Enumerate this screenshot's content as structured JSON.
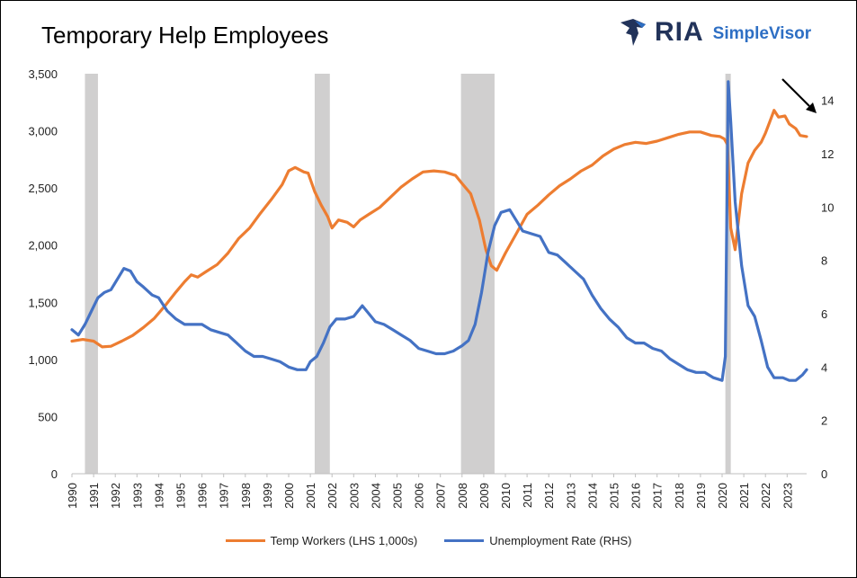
{
  "title": "Temporary Help Employees",
  "logo": {
    "brand": "RIA",
    "sub": "SimpleVisor",
    "icon": "eagle-icon"
  },
  "chart_data": {
    "type": "line",
    "x_ticks": [
      "1990",
      "1991",
      "1992",
      "1993",
      "1994",
      "1995",
      "1996",
      "1997",
      "1998",
      "1999",
      "2000",
      "2001",
      "2002",
      "2003",
      "2004",
      "2005",
      "2006",
      "2007",
      "2008",
      "2009",
      "2010",
      "2011",
      "2012",
      "2013",
      "2014",
      "2015",
      "2016",
      "2017",
      "2018",
      "2019",
      "2020",
      "2021",
      "2022",
      "2023"
    ],
    "xlim": [
      1990,
      2023.9
    ],
    "y_left": {
      "label": "",
      "ylim": [
        0,
        3500
      ],
      "ticks": [
        "0",
        "500",
        "1,000",
        "1,500",
        "2,000",
        "2,500",
        "3,000",
        "3,500"
      ],
      "tick_values": [
        0,
        500,
        1000,
        1500,
        2000,
        2500,
        3000,
        3500
      ]
    },
    "y_right": {
      "label": "",
      "ylim": [
        0,
        15
      ],
      "ticks": [
        "0",
        "2",
        "4",
        "6",
        "8",
        "10",
        "12",
        "14"
      ],
      "tick_values": [
        0,
        2,
        4,
        6,
        8,
        10,
        12,
        14
      ]
    },
    "recessions": [
      [
        1990.6,
        1991.2
      ],
      [
        2001.2,
        2001.9
      ],
      [
        2007.95,
        2009.5
      ],
      [
        2020.15,
        2020.4
      ]
    ],
    "series": [
      {
        "name": "Temp Workers (LHS 1,000s)",
        "axis": "left",
        "color": "#ED7D31",
        "x": [
          1990,
          1990.5,
          1991,
          1991.4,
          1991.8,
          1992.3,
          1992.8,
          1993.3,
          1993.8,
          1994.3,
          1994.8,
          1995.2,
          1995.5,
          1995.8,
          1996.2,
          1996.7,
          1997.2,
          1997.7,
          1998.2,
          1998.7,
          1999.2,
          1999.7,
          2000.0,
          2000.3,
          2000.7,
          2000.9,
          2001.2,
          2001.5,
          2001.8,
          2002.0,
          2002.3,
          2002.7,
          2003.0,
          2003.3,
          2003.7,
          2004.2,
          2004.7,
          2005.2,
          2005.7,
          2006.2,
          2006.7,
          2007.2,
          2007.7,
          2008.0,
          2008.4,
          2008.8,
          2009.1,
          2009.35,
          2009.6,
          2010.0,
          2010.5,
          2011.0,
          2011.5,
          2012.0,
          2012.5,
          2013.0,
          2013.5,
          2014.0,
          2014.5,
          2015.0,
          2015.5,
          2016.0,
          2016.5,
          2017.0,
          2017.5,
          2018.0,
          2018.5,
          2019.0,
          2019.5,
          2019.9,
          2020.1,
          2020.25,
          2020.4,
          2020.6,
          2020.9,
          2021.2,
          2021.5,
          2021.8,
          2022.0,
          2022.2,
          2022.4,
          2022.6,
          2022.9,
          2023.1,
          2023.4,
          2023.6,
          2023.9
        ],
        "values": [
          1160,
          1175,
          1160,
          1110,
          1115,
          1160,
          1210,
          1280,
          1360,
          1470,
          1590,
          1680,
          1740,
          1720,
          1770,
          1830,
          1930,
          2060,
          2150,
          2280,
          2400,
          2530,
          2650,
          2680,
          2640,
          2630,
          2470,
          2350,
          2250,
          2150,
          2220,
          2200,
          2160,
          2220,
          2270,
          2330,
          2420,
          2510,
          2580,
          2640,
          2650,
          2640,
          2610,
          2540,
          2450,
          2220,
          1960,
          1820,
          1780,
          1930,
          2100,
          2270,
          2350,
          2440,
          2520,
          2580,
          2650,
          2700,
          2780,
          2840,
          2880,
          2900,
          2890,
          2910,
          2940,
          2970,
          2990,
          2990,
          2960,
          2950,
          2930,
          2880,
          2150,
          1960,
          2450,
          2720,
          2830,
          2900,
          2980,
          3080,
          3180,
          3120,
          3130,
          3060,
          3020,
          2960,
          2950
        ]
      },
      {
        "name": "Unemployment Rate (RHS)",
        "axis": "right",
        "color": "#4472C4",
        "x": [
          1990,
          1990.3,
          1990.6,
          1990.9,
          1991.2,
          1991.5,
          1991.8,
          1992.1,
          1992.4,
          1992.7,
          1993.0,
          1993.3,
          1993.7,
          1994.0,
          1994.4,
          1994.8,
          1995.2,
          1995.6,
          1996.0,
          1996.4,
          1996.8,
          1997.2,
          1997.6,
          1998.0,
          1998.4,
          1998.8,
          1999.2,
          1999.6,
          2000.0,
          2000.4,
          2000.8,
          2001.0,
          2001.3,
          2001.6,
          2001.9,
          2002.2,
          2002.6,
          2003.0,
          2003.4,
          2003.7,
          2004.0,
          2004.4,
          2004.8,
          2005.2,
          2005.6,
          2006.0,
          2006.4,
          2006.8,
          2007.2,
          2007.6,
          2008.0,
          2008.3,
          2008.6,
          2008.9,
          2009.2,
          2009.5,
          2009.8,
          2010.2,
          2010.5,
          2010.8,
          2011.2,
          2011.6,
          2012.0,
          2012.4,
          2012.8,
          2013.2,
          2013.6,
          2014.0,
          2014.4,
          2014.8,
          2015.2,
          2015.6,
          2016.0,
          2016.4,
          2016.8,
          2017.2,
          2017.6,
          2018.0,
          2018.4,
          2018.8,
          2019.2,
          2019.6,
          2020.0,
          2020.15,
          2020.28,
          2020.4,
          2020.6,
          2020.9,
          2021.2,
          2021.5,
          2021.8,
          2022.1,
          2022.4,
          2022.8,
          2023.1,
          2023.4,
          2023.7,
          2023.9
        ],
        "values": [
          5.4,
          5.2,
          5.6,
          6.1,
          6.6,
          6.8,
          6.9,
          7.3,
          7.7,
          7.6,
          7.2,
          7.0,
          6.7,
          6.6,
          6.1,
          5.8,
          5.6,
          5.6,
          5.6,
          5.4,
          5.3,
          5.2,
          4.9,
          4.6,
          4.4,
          4.4,
          4.3,
          4.2,
          4.0,
          3.9,
          3.9,
          4.2,
          4.4,
          4.9,
          5.5,
          5.8,
          5.8,
          5.9,
          6.3,
          6.0,
          5.7,
          5.6,
          5.4,
          5.2,
          5.0,
          4.7,
          4.6,
          4.5,
          4.5,
          4.6,
          4.8,
          5.0,
          5.6,
          6.8,
          8.3,
          9.3,
          9.8,
          9.9,
          9.5,
          9.1,
          9.0,
          8.9,
          8.3,
          8.2,
          7.9,
          7.6,
          7.3,
          6.7,
          6.2,
          5.8,
          5.5,
          5.1,
          4.9,
          4.9,
          4.7,
          4.6,
          4.3,
          4.1,
          3.9,
          3.8,
          3.8,
          3.6,
          3.5,
          4.4,
          14.7,
          13.2,
          10.2,
          7.8,
          6.3,
          5.9,
          5.0,
          4.0,
          3.6,
          3.6,
          3.5,
          3.5,
          3.7,
          3.9
        ]
      }
    ],
    "annotation": "down-arrow-top-right",
    "legend_position": "bottom",
    "grid": false
  }
}
